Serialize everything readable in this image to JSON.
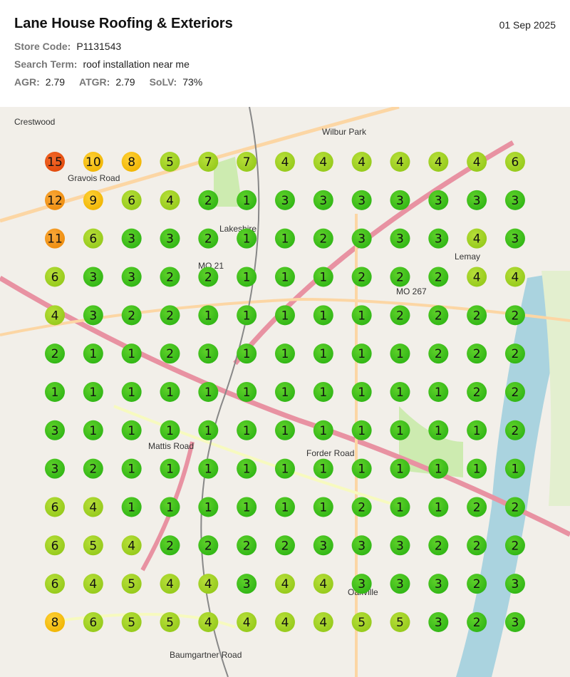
{
  "header": {
    "title": "Lane House Roofing & Exteriors",
    "date": "01 Sep 2025"
  },
  "info": [
    [
      {
        "label": "Store Code:",
        "value": "P1131543"
      }
    ],
    [
      {
        "label": "Search Term:",
        "value": "roof installation near me"
      }
    ],
    [
      {
        "label": "AGR:",
        "value": "2.79"
      },
      {
        "label": "ATGR:",
        "value": "2.79"
      },
      {
        "label": "SoLV:",
        "value": "73%"
      }
    ]
  ],
  "map_labels": [
    "Crestwood",
    "Wilbur Park",
    "Lakeshire",
    "Lemay",
    "Oakville",
    "MO 267",
    "MO 21",
    "Mattis Road",
    "Forder Road",
    "Gravois Road",
    "Baumgartner Road"
  ],
  "grid": {
    "rows": [
      [
        15,
        10,
        8,
        5,
        7,
        7,
        4,
        4,
        4,
        4,
        4,
        4,
        6
      ],
      [
        12,
        9,
        6,
        4,
        2,
        1,
        3,
        3,
        3,
        3,
        3,
        3,
        3
      ],
      [
        11,
        6,
        3,
        3,
        2,
        1,
        1,
        2,
        3,
        3,
        3,
        4,
        3
      ],
      [
        6,
        3,
        3,
        2,
        2,
        1,
        1,
        1,
        2,
        2,
        2,
        4,
        4
      ],
      [
        4,
        3,
        2,
        2,
        1,
        1,
        1,
        1,
        1,
        2,
        2,
        2,
        2
      ],
      [
        2,
        1,
        1,
        2,
        1,
        1,
        1,
        1,
        1,
        1,
        2,
        2,
        2
      ],
      [
        1,
        1,
        1,
        1,
        1,
        1,
        1,
        1,
        1,
        1,
        1,
        2,
        2
      ],
      [
        3,
        1,
        1,
        1,
        1,
        1,
        1,
        1,
        1,
        1,
        1,
        1,
        2
      ],
      [
        3,
        2,
        1,
        1,
        1,
        1,
        1,
        1,
        1,
        1,
        1,
        1,
        1
      ],
      [
        6,
        4,
        1,
        1,
        1,
        1,
        1,
        1,
        2,
        1,
        1,
        2,
        2
      ],
      [
        6,
        5,
        4,
        2,
        2,
        2,
        2,
        3,
        3,
        3,
        2,
        2,
        2
      ],
      [
        6,
        4,
        5,
        4,
        4,
        3,
        4,
        4,
        3,
        3,
        3,
        2,
        3
      ],
      [
        8,
        6,
        5,
        5,
        4,
        4,
        4,
        4,
        5,
        5,
        3,
        2,
        3
      ]
    ]
  }
}
